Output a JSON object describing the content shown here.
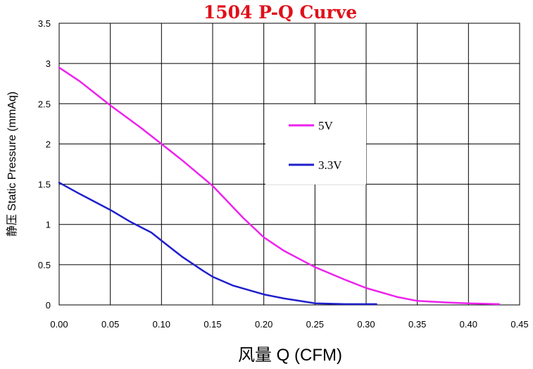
{
  "chart_data": {
    "type": "line",
    "title": "1504 P-Q Curve",
    "title_color": "#e0101a",
    "xlabel": "风量 Q (CFM)",
    "ylabel": "静压 Static Pressure (mmAq)",
    "xlim": [
      0,
      0.45
    ],
    "ylim": [
      0,
      3.5
    ],
    "xticks": [
      "0.00",
      "0.05",
      "0.10",
      "0.15",
      "0.20",
      "0.25",
      "0.30",
      "0.35",
      "0.40",
      "0.45"
    ],
    "yticks": [
      "0",
      "0.5",
      "1",
      "1.5",
      "2",
      "2.5",
      "3",
      "3.5"
    ],
    "grid": true,
    "legend_position": "center-right",
    "series": [
      {
        "name": "5V",
        "color": "#ee22ee",
        "points": [
          [
            0,
            2.95
          ],
          [
            0.02,
            2.78
          ],
          [
            0.05,
            2.48
          ],
          [
            0.08,
            2.2
          ],
          [
            0.1,
            2.0
          ],
          [
            0.12,
            1.8
          ],
          [
            0.15,
            1.48
          ],
          [
            0.18,
            1.08
          ],
          [
            0.2,
            0.84
          ],
          [
            0.22,
            0.67
          ],
          [
            0.25,
            0.47
          ],
          [
            0.28,
            0.31
          ],
          [
            0.3,
            0.21
          ],
          [
            0.33,
            0.1
          ],
          [
            0.35,
            0.05
          ],
          [
            0.38,
            0.03
          ],
          [
            0.4,
            0.02
          ],
          [
            0.43,
            0.01
          ]
        ]
      },
      {
        "name": "3.3V",
        "color": "#1f1fcc",
        "points": [
          [
            0,
            1.52
          ],
          [
            0.02,
            1.38
          ],
          [
            0.05,
            1.18
          ],
          [
            0.07,
            1.03
          ],
          [
            0.09,
            0.9
          ],
          [
            0.1,
            0.8
          ],
          [
            0.12,
            0.6
          ],
          [
            0.14,
            0.43
          ],
          [
            0.15,
            0.35
          ],
          [
            0.17,
            0.24
          ],
          [
            0.2,
            0.13
          ],
          [
            0.22,
            0.08
          ],
          [
            0.24,
            0.04
          ],
          [
            0.25,
            0.02
          ],
          [
            0.28,
            0.01
          ],
          [
            0.31,
            0.01
          ]
        ]
      }
    ]
  }
}
